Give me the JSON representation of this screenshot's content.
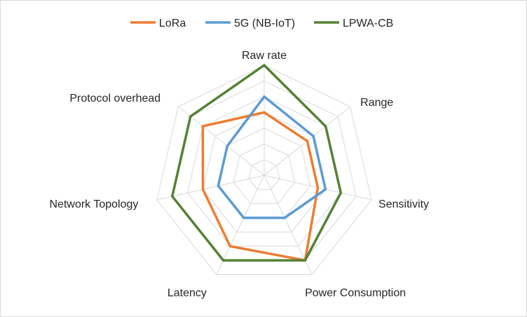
{
  "chart_data": {
    "type": "radar",
    "title": "",
    "categories": [
      "Raw rate",
      "Range",
      "Sensitivity",
      "Power Consumption",
      "Latency",
      "Network Topology",
      "Protocol overhead"
    ],
    "series": [
      {
        "name": "LoRa",
        "color": "#ed7d31",
        "values": [
          4,
          3.5,
          3.5,
          6,
          5,
          4,
          5
        ]
      },
      {
        "name": "5G (NB-IoT)",
        "color": "#5b9bd5",
        "values": [
          5,
          4,
          4,
          3,
          3,
          3,
          3
        ]
      },
      {
        "name": "LPWA-CB",
        "color": "#548235",
        "values": [
          7,
          5,
          5,
          6,
          6,
          6,
          6
        ]
      }
    ],
    "rmin": 0,
    "rmax": 7,
    "gridlines": 7,
    "grid": true,
    "legend": "top"
  }
}
